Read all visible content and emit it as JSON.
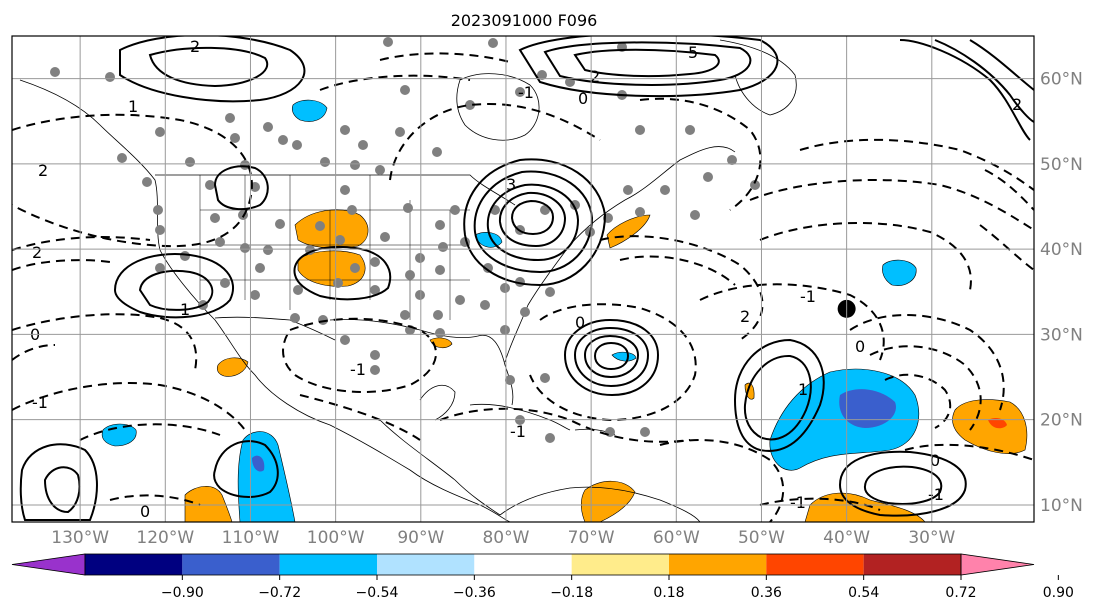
{
  "title": "2023091000 F096",
  "map": {
    "longitude_labels": [
      "130°W",
      "120°W",
      "110°W",
      "100°W",
      "90°W",
      "80°W",
      "70°W",
      "60°W",
      "50°W",
      "40°W",
      "30°W"
    ],
    "latitude_labels": [
      "60°N",
      "50°N",
      "40°N",
      "30°N",
      "20°N",
      "10°N"
    ],
    "longitudes": [
      -130,
      -120,
      -110,
      -100,
      -90,
      -80,
      -70,
      -60,
      -50,
      -40,
      -30
    ],
    "latitudes": [
      60,
      50,
      40,
      30,
      20,
      10
    ],
    "lon_range": [
      -138,
      -18
    ],
    "lat_range": [
      8,
      65
    ],
    "grid": true,
    "contour_labels": [
      "2",
      "2",
      "2",
      "1",
      "0",
      "2",
      "3",
      "5",
      "0",
      "-1",
      "1",
      "-1",
      "0",
      "-1",
      "0",
      "-1",
      "2",
      "0",
      "-1",
      "-1",
      "1",
      "0",
      "-1",
      "2"
    ],
    "station_marker": {
      "lon": -40,
      "lat": 33,
      "color": "#000000"
    }
  },
  "colorbar": {
    "colors": [
      "#9932cc",
      "#000080",
      "#3a5fcd",
      "#00bfff",
      "#b0e2ff",
      "#ffffff",
      "#ffec8b",
      "#ffa500",
      "#ff4500",
      "#b22222",
      "#ff82ab"
    ],
    "tick_labels": [
      "−0.90",
      "−0.72",
      "−0.54",
      "−0.36",
      "−0.18",
      "0.18",
      "0.36",
      "0.54",
      "0.72",
      "0.90"
    ],
    "extend": "both"
  }
}
